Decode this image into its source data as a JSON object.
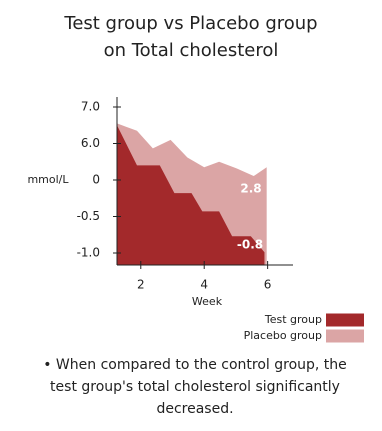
{
  "chart_data": {
    "type": "area",
    "title": "Test group vs Placebo group on Total cholesterol",
    "xlabel": "Week",
    "ylabel": "mmol/L",
    "xlim": [
      1.25,
      6.8
    ],
    "xticks": [
      2,
      4,
      6
    ],
    "yticks": [
      {
        "value": -1.0,
        "label": "-1.0"
      },
      {
        "value": -0.5,
        "label": "-0.5"
      },
      0,
      {
        "value": 6.0,
        "label": "6.0"
      },
      {
        "value": 7.0,
        "label": "7.0"
      }
    ],
    "series": [
      {
        "name": "Placebo group",
        "color": "#dba5a5",
        "x": [
          1.25,
          1.88,
          2.38,
          2.94,
          3.47,
          4.0,
          4.47,
          5.03,
          5.56,
          5.97
        ],
        "values": [
          6.55,
          6.35,
          5.2,
          6.1,
          3.7,
          2.1,
          3.0,
          1.9,
          0.65,
          2.1
        ]
      },
      {
        "name": "Test group",
        "color": "#a3292b",
        "x": [
          1.25,
          1.88,
          2.6,
          3.06,
          3.6,
          3.94,
          4.47,
          4.88,
          5.47,
          5.9
        ],
        "values": [
          6.5,
          2.4,
          2.4,
          -0.18,
          -0.18,
          -0.43,
          -0.43,
          -0.77,
          -0.77,
          -0.99
        ]
      }
    ],
    "annotations": [
      "2.8",
      "-0.8"
    ],
    "note": "When compared to the control group, the test group's total cholesterol significantly decreased."
  }
}
